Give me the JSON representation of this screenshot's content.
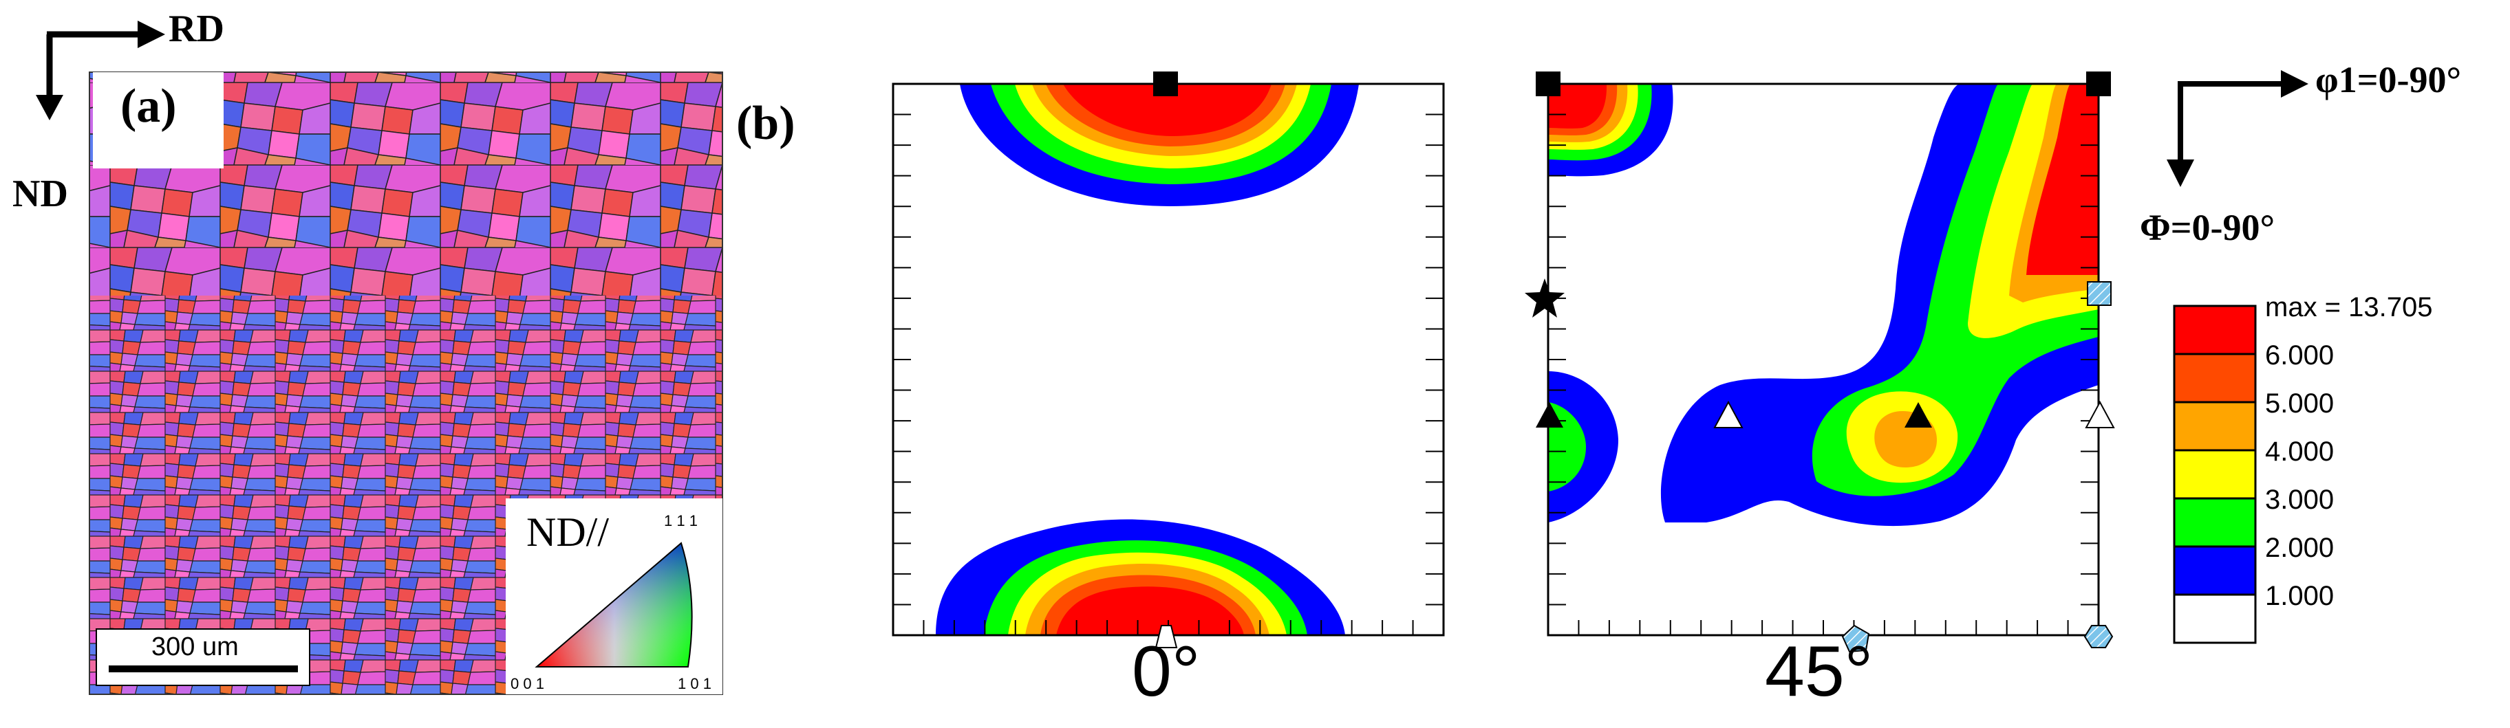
{
  "panel_a": {
    "label": "(a)",
    "axis_rd": "RD",
    "axis_nd": "ND",
    "scale_bar": "300 um",
    "ipf_key": {
      "title": "ND//",
      "corner_top": "1 1 1",
      "corner_left": "0 0 1",
      "corner_right": "1 0 1"
    }
  },
  "panel_b": {
    "label": "(b)",
    "sections": [
      {
        "caption": "0°"
      },
      {
        "caption": "45°"
      }
    ],
    "axis_phi1": "φ1=0-90°",
    "axis_Phi": "Φ=0-90°",
    "legend": {
      "entries": [
        {
          "label": "max = 13.705",
          "color": "#ff0000"
        },
        {
          "label": "6.000",
          "color": "#ff4a00"
        },
        {
          "label": "5.000",
          "color": "#ffa500"
        },
        {
          "label": "4.000",
          "color": "#ffff00"
        },
        {
          "label": "3.000",
          "color": "#00ff00"
        },
        {
          "label": "2.000",
          "color": "#0000ff"
        },
        {
          "label": "1.000",
          "color": "#ffffff"
        }
      ]
    }
  },
  "colors": {
    "red": "#ff0000",
    "orange_red": "#ff4a00",
    "orange": "#ffa500",
    "yellow": "#ffff00",
    "green": "#00ff00",
    "blue": "#0000ff",
    "hatch_blue": "#7cc4ea",
    "grain_pink": "#e35bd6",
    "grain_blue": "#4f60e8",
    "grain_red": "#ef4f4f",
    "grain_purple": "#9b54e0"
  }
}
